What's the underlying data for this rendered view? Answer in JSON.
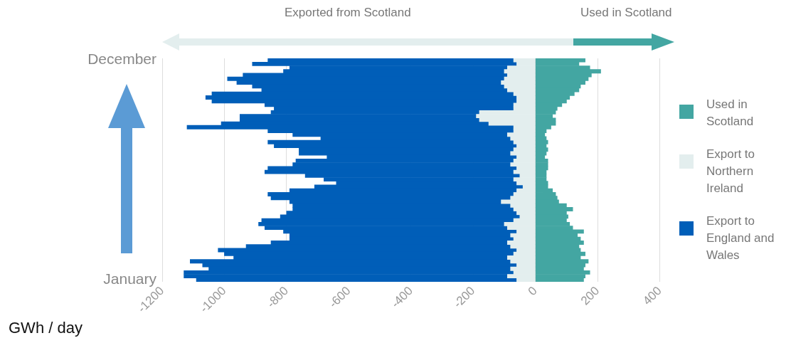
{
  "chart_data": {
    "type": "bar",
    "orientation": "horizontal",
    "stacked": true,
    "xlabel": "GWh / day",
    "annotations": [
      "Exported from Scotland",
      "Used in Scotland"
    ],
    "categories": [
      "December",
      null,
      null,
      null,
      null,
      null,
      null,
      null,
      null,
      null,
      null,
      null,
      null,
      null,
      null,
      null,
      null,
      null,
      null,
      null,
      null,
      null,
      null,
      null,
      null,
      null,
      null,
      null,
      null,
      null,
      null,
      null,
      null,
      null,
      null,
      null,
      null,
      null,
      null,
      null,
      null,
      null,
      null,
      null,
      null,
      null,
      null,
      null,
      null,
      null,
      null,
      null,
      null,
      null,
      null,
      null,
      null,
      null,
      null,
      "January"
    ],
    "series": [
      {
        "name": "Used in Scotland",
        "color": "#43a6a2",
        "values": [
          160,
          140,
          175,
          210,
          180,
          170,
          160,
          145,
          140,
          125,
          110,
          100,
          85,
          70,
          65,
          55,
          65,
          65,
          50,
          35,
          30,
          35,
          40,
          35,
          40,
          35,
          30,
          40,
          40,
          40,
          35,
          35,
          35,
          40,
          40,
          55,
          65,
          70,
          75,
          100,
          120,
          100,
          105,
          100,
          110,
          120,
          155,
          135,
          145,
          155,
          140,
          145,
          160,
          145,
          170,
          160,
          155,
          175,
          160,
          155
        ]
      },
      {
        "name": "Export to Northern Ireland",
        "color": "#e3eeee",
        "values": [
          -70,
          -60,
          -90,
          -100,
          -90,
          -100,
          -110,
          -100,
          -90,
          -70,
          -60,
          -60,
          -70,
          -70,
          -180,
          -190,
          -180,
          -150,
          -70,
          -70,
          -90,
          -80,
          -70,
          -60,
          -70,
          -80,
          -60,
          -70,
          -80,
          -60,
          -70,
          -50,
          -70,
          -60,
          -40,
          -60,
          -70,
          -80,
          -110,
          -80,
          -70,
          -60,
          -50,
          -70,
          -100,
          -90,
          -60,
          -80,
          -70,
          -90,
          -80,
          -60,
          -70,
          -90,
          -80,
          -60,
          -80,
          -70,
          -90,
          -60
        ]
      },
      {
        "name": "Export to England and Wales",
        "color": "#005eb8",
        "values": [
          -790,
          -850,
          -700,
          -710,
          -850,
          -890,
          -850,
          -810,
          -790,
          -970,
          -1000,
          -980,
          -800,
          -770,
          -670,
          -760,
          -770,
          -860,
          -1050,
          -790,
          -690,
          -610,
          -790,
          -780,
          -690,
          -680,
          -610,
          -700,
          -700,
          -800,
          -800,
          -690,
          -610,
          -580,
          -670,
          -730,
          -790,
          -770,
          -680,
          -700,
          -710,
          -740,
          -770,
          -810,
          -790,
          -780,
          -750,
          -710,
          -720,
          -760,
          -850,
          -960,
          -930,
          -880,
          -1030,
          -1010,
          -970,
          -1060,
          -1040,
          -1030
        ]
      }
    ],
    "xlim": [
      -1200,
      400
    ],
    "xticks": [
      -1200,
      -1000,
      -800,
      -600,
      -400,
      -200,
      0,
      200,
      400
    ],
    "grid": "x",
    "legend": "right"
  }
}
